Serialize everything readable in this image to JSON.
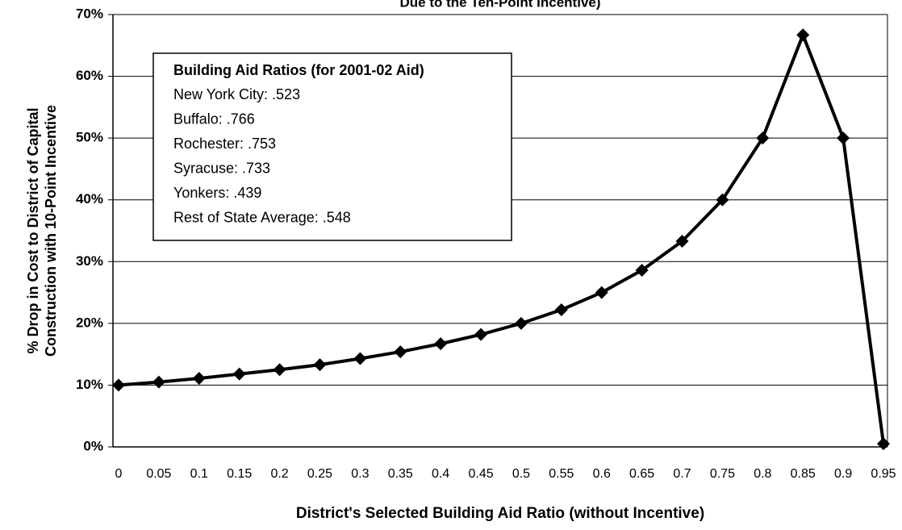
{
  "chart_data": {
    "type": "line",
    "title": "Due to the Ten-Point Incentive)",
    "x_label": "District's Selected Building Aid Ratio (without Incentive)",
    "y_label": [
      "% Drop in Cost to District of Capital",
      "Construction with 10-Point Incentive"
    ],
    "categories": [
      "0",
      "0.05",
      "0.1",
      "0.15",
      "0.2",
      "0.25",
      "0.3",
      "0.35",
      "0.4",
      "0.45",
      "0.5",
      "0.55",
      "0.6",
      "0.65",
      "0.7",
      "0.75",
      "0.8",
      "0.85",
      "0.9",
      "0.95"
    ],
    "series": [
      {
        "color": "#000000",
        "values": [
          10,
          10.5,
          11.1,
          11.8,
          12.5,
          13.3,
          14.3,
          15.4,
          16.7,
          18.2,
          20,
          22.2,
          25,
          28.6,
          33.3,
          40,
          50,
          66.7,
          50,
          0.5
        ]
      }
    ],
    "ylim": [
      0,
      70
    ],
    "yticks": [
      {
        "value": 0,
        "label": "0%"
      },
      {
        "value": 10,
        "label": "10%"
      },
      {
        "value": 20,
        "label": "20%"
      },
      {
        "value": 30,
        "label": "30%"
      },
      {
        "value": 40,
        "label": "40%"
      },
      {
        "value": 50,
        "label": "50%"
      },
      {
        "value": 60,
        "label": "60%"
      },
      {
        "value": 70,
        "label": "70%"
      }
    ],
    "grid": true,
    "annotation": {
      "title": "Building Aid Ratios (for 2001-02 Aid)",
      "lines": [
        "New York City:  .523",
        "Buffalo:  .766",
        "Rochester:  .753",
        "Syracuse:  .733",
        "Yonkers:  .439",
        "Rest of State Average:  .548"
      ]
    }
  }
}
